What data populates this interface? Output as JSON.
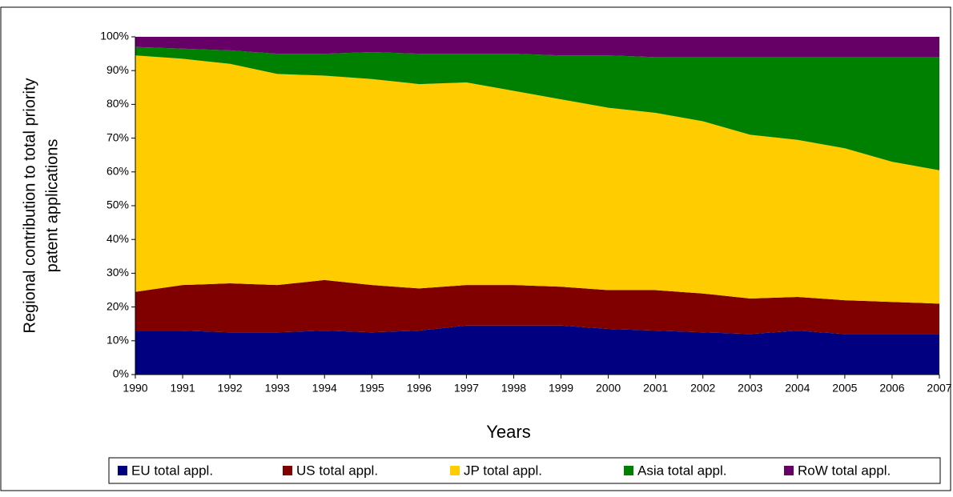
{
  "chart_data": {
    "type": "stacked_area",
    "x_label": "Years",
    "y_label": [
      "Regional contribution to total priority",
      "patent applications"
    ],
    "categories": [
      "1990",
      "1991",
      "1992",
      "1993",
      "1994",
      "1995",
      "1996",
      "1997",
      "1998",
      "1999",
      "2000",
      "2001",
      "2002",
      "2003",
      "2004",
      "2005",
      "2006",
      "2007"
    ],
    "series": [
      {
        "name": "EU total appl.",
        "color": "#000080",
        "values": [
          13,
          13,
          12.5,
          12.5,
          13,
          12.5,
          13,
          14.5,
          14.5,
          14.5,
          13.5,
          13,
          12.5,
          12,
          13,
          12,
          12,
          12
        ]
      },
      {
        "name": "US total appl.",
        "color": "#800000",
        "values": [
          11.5,
          13.5,
          14.5,
          14,
          15,
          14,
          12.5,
          12,
          12,
          11.5,
          11.5,
          12,
          11.5,
          10.5,
          10,
          10,
          9.5,
          9
        ]
      },
      {
        "name": "JP total appl.",
        "color": "#ffcc00",
        "values": [
          70,
          67,
          65,
          62.5,
          60.5,
          61,
          60.5,
          60,
          57.5,
          55.5,
          54,
          52.5,
          51,
          48.5,
          46.5,
          45,
          41.5,
          39.5
        ]
      },
      {
        "name": "Asia total appl.",
        "color": "#008000",
        "values": [
          2.5,
          3,
          4,
          6,
          6.5,
          8,
          9,
          8.5,
          11,
          13,
          15.5,
          16.5,
          19,
          23,
          24.5,
          27,
          31,
          33.5
        ]
      },
      {
        "name": "RoW total appl.",
        "color": "#660066",
        "values": [
          3,
          3.5,
          4,
          5,
          5,
          4.5,
          5,
          5,
          5,
          5.5,
          5.5,
          6,
          6,
          6,
          6,
          6,
          6,
          6
        ]
      }
    ],
    "ylim": [
      0,
      100
    ],
    "yticks": [
      {
        "value": 0,
        "label": "0%"
      },
      {
        "value": 10,
        "label": "10%"
      },
      {
        "value": 20,
        "label": "20%"
      },
      {
        "value": 30,
        "label": "30%"
      },
      {
        "value": 40,
        "label": "40%"
      },
      {
        "value": 50,
        "label": "50%"
      },
      {
        "value": 60,
        "label": "60%"
      },
      {
        "value": 70,
        "label": "70%"
      },
      {
        "value": 80,
        "label": "80%"
      },
      {
        "value": 90,
        "label": "90%"
      },
      {
        "value": 100,
        "label": "100%"
      }
    ]
  }
}
